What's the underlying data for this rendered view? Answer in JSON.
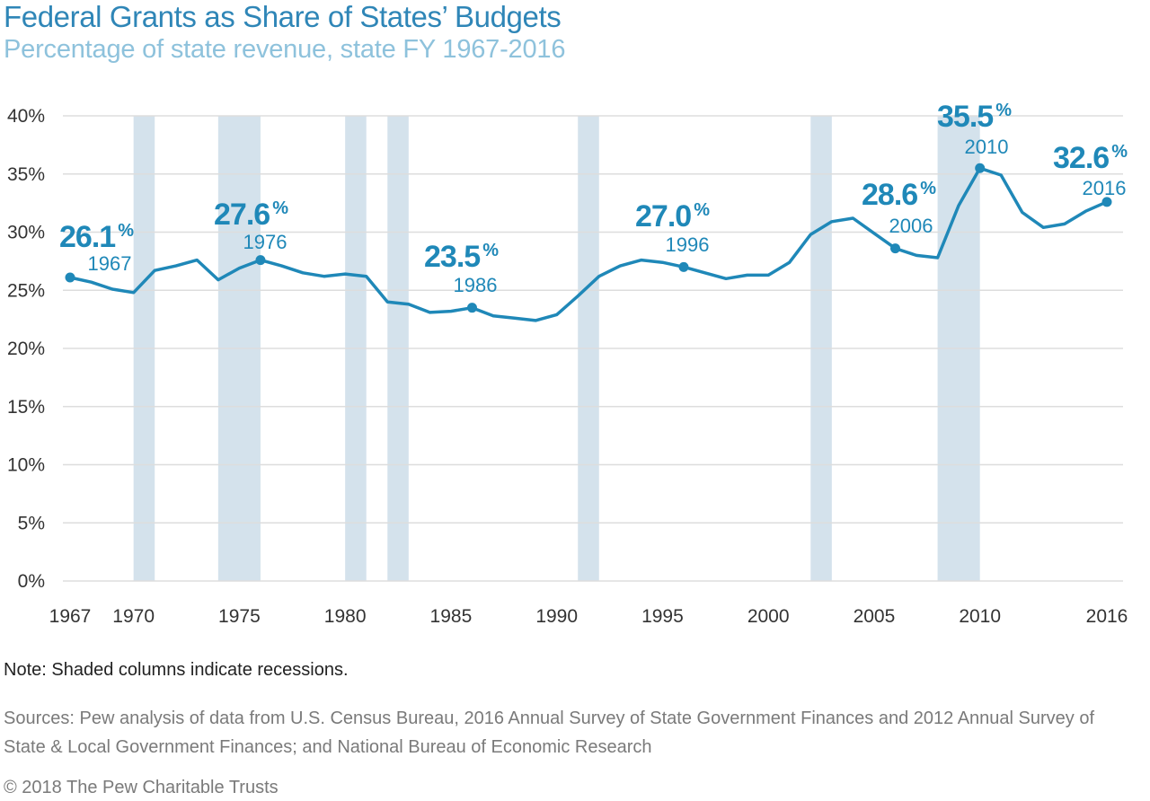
{
  "header": {
    "title": "Federal Grants as Share of States’ Budgets",
    "subtitle": "Percentage of state revenue, state FY 1967-2016"
  },
  "footer": {
    "note": "Note: Shaded columns indicate recessions.",
    "sources": "Sources: Pew analysis of data from U.S. Census Bureau, 2016 Annual Survey of State Government Finances and 2012 Annual Survey of State & Local Government Finances; and National Bureau of Economic Research",
    "copyright": "© 2018 The Pew Charitable Trusts"
  },
  "colors": {
    "line": "#1f88b8",
    "recession": "#d4e2ec",
    "grid": "#dddddd",
    "title": "#2f86b7",
    "subtitle": "#8ec2dc",
    "axis_text": "#333333"
  },
  "chart_data": {
    "type": "line",
    "title": "Federal Grants as Share of States’ Budgets",
    "subtitle": "Percentage of state revenue, state FY 1967-2016",
    "xlabel": "",
    "ylabel": "",
    "xlim": [
      1967,
      2016
    ],
    "ylim": [
      0,
      40
    ],
    "grid": true,
    "x_ticks": [
      1967,
      1970,
      1975,
      1980,
      1985,
      1990,
      1995,
      2000,
      2005,
      2010,
      2016
    ],
    "y_ticks": [
      0,
      5,
      10,
      15,
      20,
      25,
      30,
      35,
      40
    ],
    "y_tick_labels": [
      "0%",
      "5%",
      "10%",
      "15%",
      "20%",
      "25%",
      "30%",
      "35%",
      "40%"
    ],
    "recessions": [
      [
        1970,
        1971
      ],
      [
        1974,
        1976
      ],
      [
        1980,
        1981
      ],
      [
        1982,
        1983
      ],
      [
        1991,
        1992
      ],
      [
        2002,
        2003
      ],
      [
        2008,
        2010
      ]
    ],
    "series": [
      {
        "x": [
          1967,
          1968,
          1969,
          1970,
          1971,
          1972,
          1973,
          1974,
          1975,
          1976,
          1977,
          1978,
          1979,
          1980,
          1981,
          1982,
          1983,
          1984,
          1985,
          1986,
          1987,
          1988,
          1989,
          1990,
          1991,
          1992,
          1993,
          1994,
          1995,
          1996,
          1997,
          1998,
          1999,
          2000,
          2001,
          2002,
          2003,
          2004,
          2005,
          2006,
          2007,
          2008,
          2009,
          2010,
          2011,
          2012,
          2013,
          2014,
          2015,
          2016
        ],
        "y": [
          26.1,
          25.7,
          25.1,
          24.8,
          26.7,
          27.1,
          27.6,
          25.9,
          26.9,
          27.6,
          27.1,
          26.5,
          26.2,
          26.4,
          26.2,
          24.0,
          23.8,
          23.1,
          23.2,
          23.5,
          22.8,
          22.6,
          22.4,
          22.9,
          24.5,
          26.2,
          27.1,
          27.6,
          27.4,
          27.0,
          26.5,
          26.0,
          26.3,
          26.3,
          27.4,
          29.8,
          30.9,
          31.2,
          29.9,
          28.6,
          28.0,
          27.8,
          32.3,
          35.5,
          34.9,
          31.7,
          30.4,
          30.7,
          31.8,
          32.6
        ]
      }
    ],
    "annotations": [
      {
        "year": 1967,
        "value": "26.1",
        "unit": "%",
        "label": "1967"
      },
      {
        "year": 1976,
        "value": "27.6",
        "unit": "%",
        "label": "1976"
      },
      {
        "year": 1986,
        "value": "23.5",
        "unit": "%",
        "label": "1986"
      },
      {
        "year": 1996,
        "value": "27.0",
        "unit": "%",
        "label": "1996"
      },
      {
        "year": 2006,
        "value": "28.6",
        "unit": "%",
        "label": "2006"
      },
      {
        "year": 2010,
        "value": "35.5",
        "unit": "%",
        "label": "2010"
      },
      {
        "year": 2016,
        "value": "32.6",
        "unit": "%",
        "label": "2016"
      }
    ]
  }
}
